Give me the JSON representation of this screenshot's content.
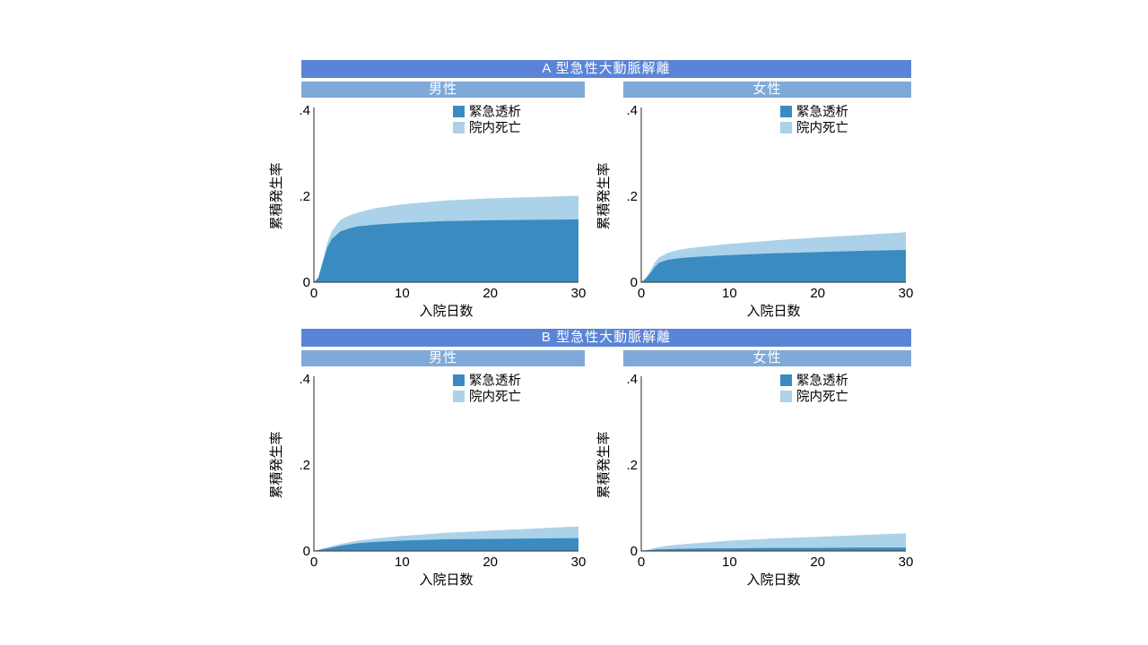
{
  "page": {
    "background": "#ffffff"
  },
  "colors": {
    "dialysis_fill": "#3a8bc1",
    "death_fill": "#abd2e8",
    "section_bar": "#5b84d6",
    "sex_bar": "#7fa9d8",
    "bar_text": "#ffffff",
    "axis_line": "#4a4a4a",
    "tick_text": "#000000"
  },
  "sections": [
    {
      "title": "A 型急性大動脈解離",
      "panels": [
        "男性",
        "女性"
      ]
    },
    {
      "title": "B 型急性大動脈解離",
      "panels": [
        "男性",
        "女性"
      ]
    }
  ],
  "chart_data": [
    {
      "type": "area",
      "panel": "type-a-male",
      "section": "A 型急性大動脈解離",
      "subtitle": "男性",
      "xlabel": "入院日数",
      "ylabel": "累積発生率",
      "xlim": [
        0,
        30
      ],
      "ylim": [
        0,
        0.4
      ],
      "xtick_values": [
        0,
        10,
        20,
        30
      ],
      "xtick_labels": [
        "0",
        "10",
        "20",
        "30"
      ],
      "ytick_values": [
        0,
        0.2,
        0.4
      ],
      "ytick_labels": [
        "0",
        ".2",
        ".4"
      ],
      "legend": [
        "緊急透析",
        "院内死亡"
      ],
      "legend_position": "top-center-right",
      "grid": false,
      "stacked": true,
      "x": [
        0,
        0.5,
        1,
        1.5,
        2,
        3,
        4,
        5,
        7,
        10,
        15,
        20,
        25,
        30
      ],
      "series": [
        {
          "name": "緊急透析",
          "values": [
            0,
            0.01,
            0.045,
            0.08,
            0.1,
            0.118,
            0.125,
            0.13,
            0.134,
            0.138,
            0.142,
            0.144,
            0.145,
            0.146
          ]
        },
        {
          "name": "院内死亡",
          "values": [
            0,
            0.002,
            0.005,
            0.01,
            0.018,
            0.027,
            0.03,
            0.032,
            0.038,
            0.043,
            0.048,
            0.051,
            0.053,
            0.055
          ]
        }
      ]
    },
    {
      "type": "area",
      "panel": "type-a-female",
      "section": "A 型急性大動脈解離",
      "subtitle": "女性",
      "xlabel": "入院日数",
      "ylabel": "累積発生率",
      "xlim": [
        0,
        30
      ],
      "ylim": [
        0,
        0.4
      ],
      "xtick_values": [
        0,
        10,
        20,
        30
      ],
      "xtick_labels": [
        "0",
        "10",
        "20",
        "30"
      ],
      "ytick_values": [
        0,
        0.2,
        0.4
      ],
      "ytick_labels": [
        "0",
        ".2",
        ".4"
      ],
      "legend": [
        "緊急透析",
        "院内死亡"
      ],
      "legend_position": "top-center-right",
      "grid": false,
      "stacked": true,
      "x": [
        0,
        0.5,
        1,
        1.5,
        2,
        3,
        4,
        5,
        7,
        10,
        15,
        20,
        25,
        30
      ],
      "series": [
        {
          "name": "緊急透析",
          "values": [
            0,
            0.008,
            0.02,
            0.035,
            0.045,
            0.052,
            0.055,
            0.057,
            0.06,
            0.063,
            0.067,
            0.07,
            0.073,
            0.075
          ]
        },
        {
          "name": "院内死亡",
          "values": [
            0,
            0.002,
            0.005,
            0.01,
            0.013,
            0.016,
            0.019,
            0.021,
            0.023,
            0.026,
            0.03,
            0.034,
            0.037,
            0.041
          ]
        }
      ]
    },
    {
      "type": "area",
      "panel": "type-b-male",
      "section": "B 型急性大動脈解離",
      "subtitle": "男性",
      "xlabel": "入院日数",
      "ylabel": "累積発生率",
      "xlim": [
        0,
        30
      ],
      "ylim": [
        0,
        0.4
      ],
      "xtick_values": [
        0,
        10,
        20,
        30
      ],
      "xtick_labels": [
        "0",
        "10",
        "20",
        "30"
      ],
      "ytick_values": [
        0,
        0.2,
        0.4
      ],
      "ytick_labels": [
        "0",
        ".2",
        ".4"
      ],
      "legend": [
        "緊急透析",
        "院内死亡"
      ],
      "legend_position": "top-center-right",
      "grid": false,
      "stacked": true,
      "x": [
        0,
        0.5,
        1,
        1.5,
        2,
        3,
        4,
        5,
        7,
        10,
        15,
        20,
        25,
        30
      ],
      "series": [
        {
          "name": "緊急透析",
          "values": [
            0,
            0.002,
            0.004,
            0.006,
            0.008,
            0.012,
            0.015,
            0.018,
            0.021,
            0.024,
            0.027,
            0.028,
            0.029,
            0.03
          ]
        },
        {
          "name": "院内死亡",
          "values": [
            0,
            0.001,
            0.002,
            0.002,
            0.003,
            0.004,
            0.005,
            0.006,
            0.008,
            0.011,
            0.015,
            0.019,
            0.023,
            0.027
          ]
        }
      ]
    },
    {
      "type": "area",
      "panel": "type-b-female",
      "section": "B 型急性大動脈解離",
      "subtitle": "女性",
      "xlabel": "入院日数",
      "ylabel": "累積発生率",
      "xlim": [
        0,
        30
      ],
      "ylim": [
        0,
        0.4
      ],
      "xtick_values": [
        0,
        10,
        20,
        30
      ],
      "xtick_labels": [
        "0",
        "10",
        "20",
        "30"
      ],
      "ytick_values": [
        0,
        0.2,
        0.4
      ],
      "ytick_labels": [
        "0",
        ".2",
        ".4"
      ],
      "legend": [
        "緊急透析",
        "院内死亡"
      ],
      "legend_position": "top-center-right",
      "grid": false,
      "stacked": true,
      "x": [
        0,
        0.5,
        1,
        1.5,
        2,
        3,
        4,
        5,
        7,
        10,
        15,
        20,
        25,
        30
      ],
      "series": [
        {
          "name": "緊急透析",
          "values": [
            0,
            0.001,
            0.002,
            0.003,
            0.004,
            0.004,
            0.005,
            0.005,
            0.006,
            0.006,
            0.007,
            0.007,
            0.008,
            0.008
          ]
        },
        {
          "name": "院内死亡",
          "values": [
            0,
            0.001,
            0.002,
            0.004,
            0.005,
            0.008,
            0.009,
            0.011,
            0.013,
            0.018,
            0.022,
            0.026,
            0.029,
            0.033
          ]
        }
      ]
    }
  ]
}
